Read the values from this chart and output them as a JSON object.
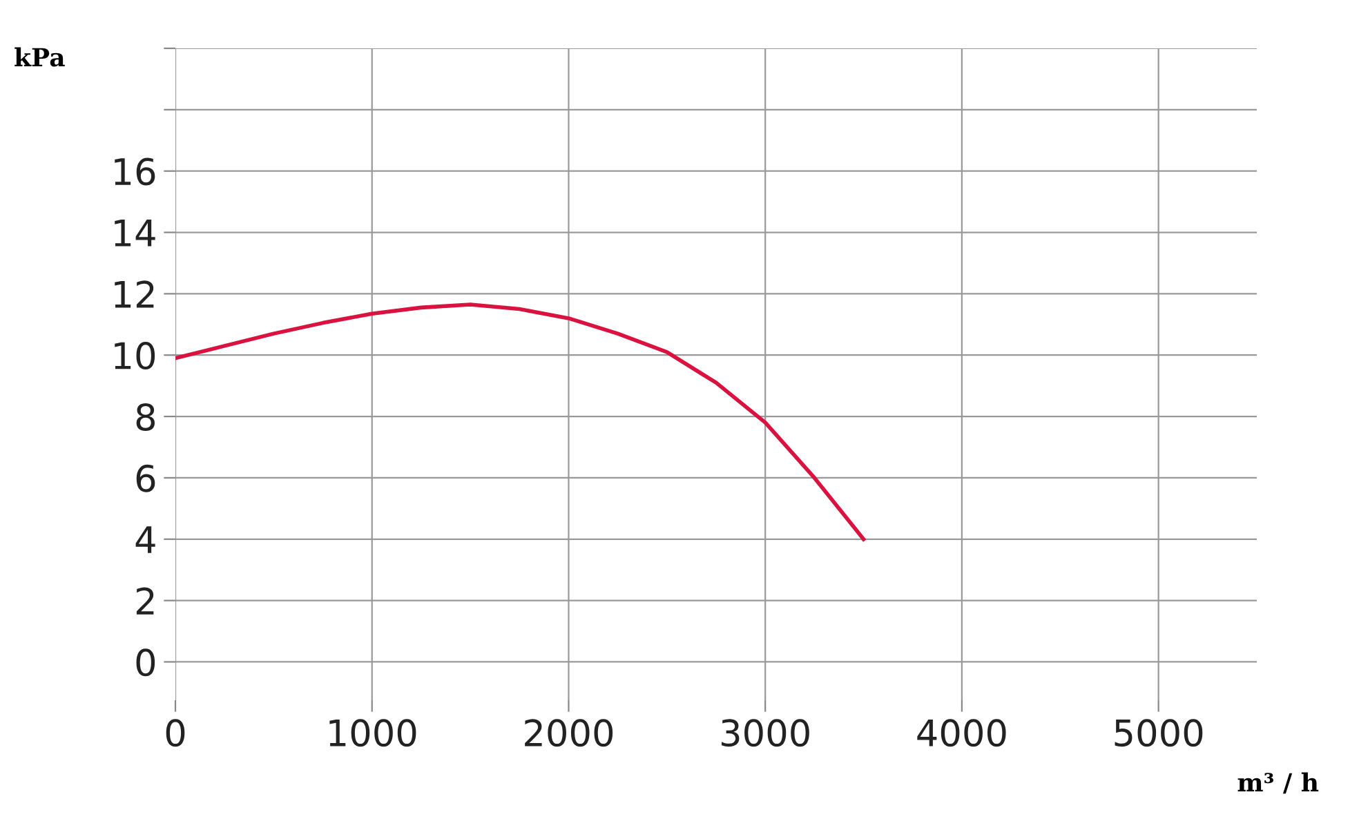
{
  "chart_data": {
    "type": "line",
    "xlabel": "m³ / h",
    "ylabel": "kPa",
    "x": [
      0,
      250,
      500,
      750,
      1000,
      1250,
      1500,
      1750,
      2000,
      2250,
      2500,
      2750,
      3000,
      3250,
      3500
    ],
    "series": [
      {
        "color": "#d9123f",
        "values": [
          9.9,
          10.3,
          10.7,
          11.05,
          11.35,
          11.55,
          11.65,
          11.5,
          11.2,
          10.7,
          10.1,
          9.1,
          7.8,
          6.0,
          4.0
        ]
      }
    ],
    "xlim": [
      0,
      5500
    ],
    "xticks": [
      0,
      1000,
      2000,
      3000,
      4000,
      5000
    ],
    "ylim": [
      -1.25,
      20
    ],
    "yticks": [
      0,
      2,
      4,
      6,
      8,
      10,
      12,
      14,
      16,
      {
        "value": 18,
        "label": null
      },
      {
        "value": 20,
        "label": null
      }
    ],
    "grid": true,
    "marker": "none",
    "line_style": "solid",
    "legend": false
  }
}
